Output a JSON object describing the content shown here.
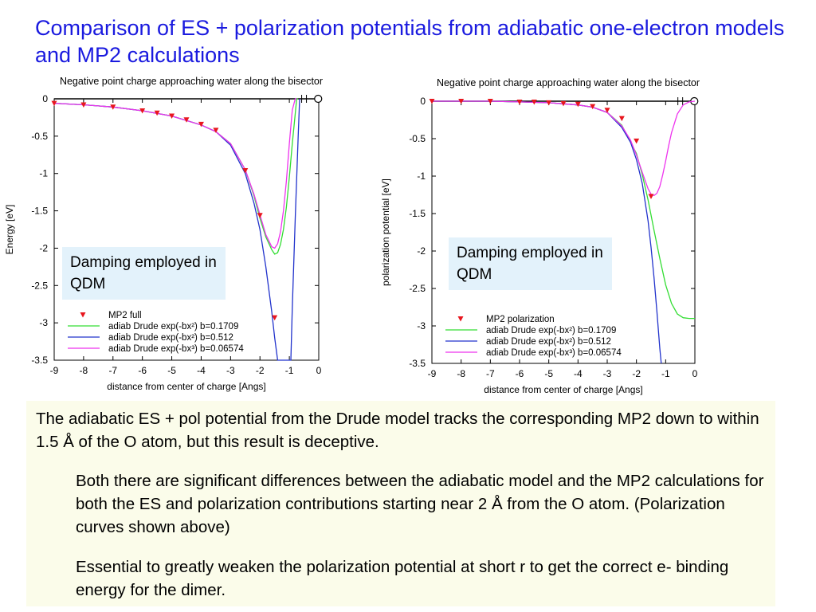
{
  "slide": {
    "title": "Comparison of ES + polarization potentials from adiabatic one-electron models and MP2 calculations"
  },
  "callouts": {
    "left": "Damping employed in QDM",
    "right": "Damping employed in QDM"
  },
  "text_box": {
    "main": "The adiabatic ES + pol potential from the Drude model tracks the corresponding MP2 down to within 1.5 Å of the O atom, but this result is deceptive.",
    "sub1": "Both there are significant differences between the adiabatic model and the MP2 calculations for both the ES and polarization contributions starting near 2 Å from the O atom. (Polarization curves shown above)",
    "sub2": "Essential to greatly weaken the polarization potential at short r to get the correct e- binding energy for the dimer."
  },
  "colors": {
    "title": "#1a1adf",
    "mp2": "#e8161e",
    "green": "#33dd33",
    "blue": "#2233cc",
    "magenta": "#ee33ee",
    "callout_bg": "#e3f2fb",
    "text_box_bg": "#fbfcea"
  },
  "chart_data": [
    {
      "type": "line",
      "title": "Negative point charge approaching water along the bisector",
      "xlabel": "distance from center of charge [Angs]",
      "ylabel": "Energy [eV]",
      "xlim": [
        -9,
        0
      ],
      "ylim": [
        -3.5,
        0
      ],
      "xticks": [
        -9,
        -8,
        -7,
        -6,
        -5,
        -4,
        -3,
        -2,
        -1,
        0
      ],
      "xtick_labels": [
        "-9",
        "-8",
        "-7",
        "-6",
        "-5",
        "-4",
        "-3",
        "-2",
        "-1",
        "0"
      ],
      "yticks": [
        0,
        -0.5,
        -1,
        -1.5,
        -2,
        -2.5,
        -3,
        -3.5
      ],
      "ytick_labels": [
        "0",
        "-0.5",
        "-1",
        "-1.5",
        "-2",
        "-2.5",
        "-3",
        "-3.5"
      ],
      "legend_position": "bottom-left",
      "markers": [
        "H",
        "O"
      ],
      "marker_x": [
        -0.5,
        -0.02
      ],
      "series": [
        {
          "name": "MP2 full",
          "kind": "points",
          "color": "#e8161e",
          "x": [
            -9,
            -8,
            -7,
            -6,
            -5.5,
            -5,
            -4.5,
            -4,
            -3.5,
            -2.5,
            -2,
            -1.5
          ],
          "y": [
            -0.06,
            -0.08,
            -0.11,
            -0.16,
            -0.19,
            -0.23,
            -0.28,
            -0.34,
            -0.42,
            -0.96,
            -1.56,
            -2.93
          ]
        },
        {
          "name": "adiab Drude exp(-bx²) b=0.1709",
          "kind": "line",
          "color": "#33dd33",
          "x": [
            -9,
            -8,
            -7,
            -6,
            -5,
            -4,
            -3.5,
            -3,
            -2.5,
            -2.2,
            -2,
            -1.8,
            -1.6,
            -1.5,
            -1.4,
            -1.3,
            -1.2,
            -1.1,
            -1.0,
            -0.9,
            -0.8,
            -0.75,
            -0.7
          ],
          "y": [
            -0.06,
            -0.08,
            -0.11,
            -0.16,
            -0.23,
            -0.35,
            -0.44,
            -0.6,
            -0.95,
            -1.3,
            -1.6,
            -1.85,
            -2.02,
            -2.08,
            -2.06,
            -1.95,
            -1.75,
            -1.45,
            -1.05,
            -0.6,
            -0.2,
            0,
            0
          ]
        },
        {
          "name": "adiab Drude exp(-bx²) b=0.512",
          "kind": "line",
          "color": "#2233cc",
          "x": [
            -9,
            -8,
            -7,
            -6,
            -5,
            -4,
            -3.5,
            -3,
            -2.5,
            -2.2,
            -2,
            -1.8,
            -1.6,
            -1.5,
            -1.4,
            -1.3,
            -1.1,
            -0.95,
            -0.9,
            -0.8,
            -0.7,
            -0.65
          ],
          "y": [
            -0.06,
            -0.08,
            -0.11,
            -0.16,
            -0.23,
            -0.35,
            -0.44,
            -0.62,
            -1.0,
            -1.4,
            -1.75,
            -2.25,
            -2.85,
            -3.2,
            -3.5,
            -3.5,
            -3.5,
            -3.5,
            -2.8,
            -1.6,
            -0.5,
            0
          ]
        },
        {
          "name": "adiab Drude exp(-bx³) b=0.06574",
          "kind": "line",
          "color": "#ee33ee",
          "x": [
            -9,
            -8,
            -7,
            -6,
            -5,
            -4,
            -3.5,
            -3,
            -2.5,
            -2.2,
            -2,
            -1.8,
            -1.6,
            -1.5,
            -1.4,
            -1.3,
            -1.2,
            -1.1,
            -1.0,
            -0.9,
            -0.8,
            -0.75
          ],
          "y": [
            -0.06,
            -0.08,
            -0.11,
            -0.16,
            -0.23,
            -0.35,
            -0.44,
            -0.6,
            -0.95,
            -1.28,
            -1.55,
            -1.82,
            -1.98,
            -2.0,
            -1.94,
            -1.78,
            -1.5,
            -1.1,
            -0.6,
            -0.15,
            0,
            0
          ]
        }
      ]
    },
    {
      "type": "line",
      "title": "Negative point charge approaching water along the bisector",
      "xlabel": "distance from center of charge [Angs]",
      "ylabel": "polarization potential [eV]",
      "xlim": [
        -9,
        0
      ],
      "ylim": [
        -3.5,
        0
      ],
      "xticks": [
        -9,
        -8,
        -7,
        -6,
        -5,
        -4,
        -3,
        -2,
        -1,
        0
      ],
      "xtick_labels": [
        "-9",
        "-8",
        "-7",
        "-6",
        "-5",
        "-4",
        "-3",
        "-2",
        "-1",
        "0"
      ],
      "yticks": [
        0,
        -0.5,
        -1,
        -1.5,
        -2,
        -2.5,
        -3,
        -3.5
      ],
      "ytick_labels": [
        "0",
        "-0.5",
        "-1",
        "-1.5",
        "-2",
        "-2.5",
        "-3",
        "-3.5"
      ],
      "legend_position": "bottom-left",
      "markers": [
        "H",
        "O"
      ],
      "marker_x": [
        -0.5,
        -0.02
      ],
      "series": [
        {
          "name": "MP2 polarization",
          "kind": "points",
          "color": "#e8161e",
          "x": [
            -9,
            -8,
            -7,
            -6,
            -5.5,
            -5,
            -4.5,
            -4,
            -3.5,
            -3,
            -2.5,
            -2,
            -1.5
          ],
          "y": [
            0,
            0,
            0,
            -0.01,
            -0.01,
            -0.02,
            -0.03,
            -0.04,
            -0.07,
            -0.12,
            -0.23,
            -0.53,
            -1.27
          ]
        },
        {
          "name": "adiab Drude exp(-bx²) b=0.1709",
          "kind": "line",
          "color": "#33dd33",
          "x": [
            -9,
            -8,
            -7,
            -6,
            -5,
            -4,
            -3.5,
            -3,
            -2.5,
            -2,
            -1.8,
            -1.6,
            -1.4,
            -1.2,
            -1.0,
            -0.8,
            -0.6,
            -0.4,
            -0.2,
            0
          ],
          "y": [
            0,
            0,
            0,
            -0.01,
            -0.02,
            -0.05,
            -0.08,
            -0.15,
            -0.32,
            -0.7,
            -0.98,
            -1.32,
            -1.72,
            -2.1,
            -2.45,
            -2.7,
            -2.84,
            -2.89,
            -2.9,
            -2.9
          ]
        },
        {
          "name": "adiab Drude exp(-bx²) b=0.512",
          "kind": "line",
          "color": "#2233cc",
          "x": [
            -9,
            -8,
            -7,
            -6,
            -5,
            -4,
            -3.5,
            -3,
            -2.5,
            -2.2,
            -2,
            -1.8,
            -1.6,
            -1.5,
            -1.4,
            -1.3,
            -1.2,
            -1.15
          ],
          "y": [
            0,
            0,
            0,
            -0.01,
            -0.02,
            -0.05,
            -0.08,
            -0.15,
            -0.35,
            -0.55,
            -0.78,
            -1.1,
            -1.6,
            -1.95,
            -2.35,
            -2.8,
            -3.3,
            -3.5
          ]
        },
        {
          "name": "adiab Drude exp(-bx³) b=0.06574",
          "kind": "line",
          "color": "#ee33ee",
          "x": [
            -9,
            -8,
            -7,
            -6,
            -5,
            -4,
            -3.5,
            -3,
            -2.5,
            -2.2,
            -2,
            -1.8,
            -1.6,
            -1.5,
            -1.4,
            -1.3,
            -1.2,
            -1.1,
            -1.0,
            -0.9,
            -0.8,
            -0.6,
            -0.4,
            -0.2,
            0
          ],
          "y": [
            0,
            0,
            0,
            -0.01,
            -0.02,
            -0.05,
            -0.08,
            -0.15,
            -0.33,
            -0.52,
            -0.72,
            -0.95,
            -1.17,
            -1.24,
            -1.26,
            -1.23,
            -1.14,
            -0.98,
            -0.8,
            -0.6,
            -0.42,
            -0.17,
            -0.05,
            -0.01,
            0
          ]
        }
      ]
    }
  ]
}
